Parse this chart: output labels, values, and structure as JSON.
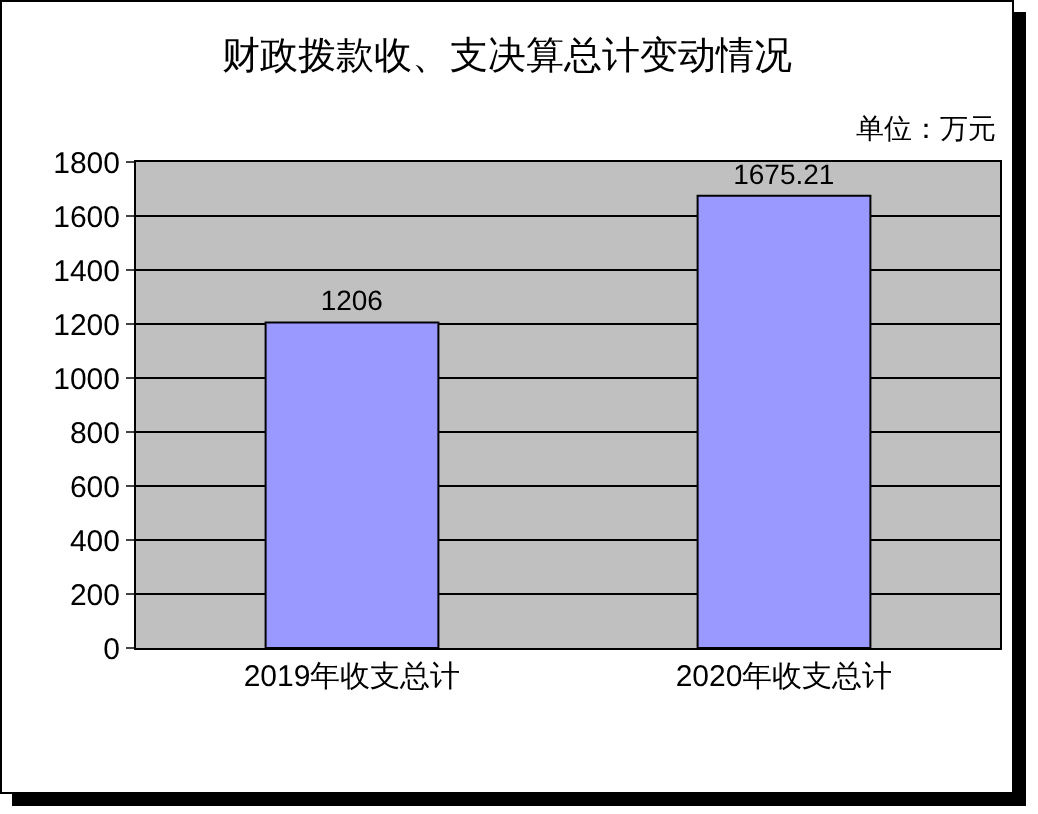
{
  "chart_data": {
    "type": "bar",
    "title": "财政拨款收、支决算总计变动情况",
    "annotations": [
      "单位：万元"
    ],
    "categories": [
      "2019年收支总计",
      "2020年收支总计"
    ],
    "values": [
      1206,
      1675.21
    ],
    "color": "#9999ff",
    "ylim": [
      0,
      1800
    ],
    "yticks": [
      0,
      200,
      400,
      600,
      800,
      1000,
      1200,
      1400,
      1600,
      1800
    ],
    "grid": "y",
    "data_labels": true
  }
}
